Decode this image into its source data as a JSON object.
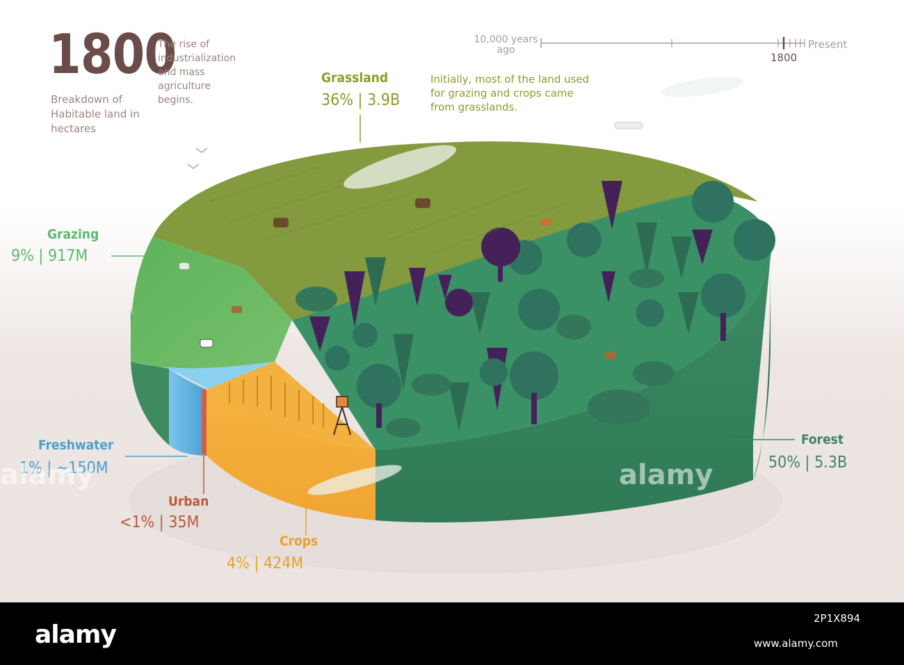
{
  "header": {
    "year": "1800",
    "subtitle": "Breakdown of Habitable land in hectares",
    "description": "The rise of industrialization and mass agriculture begins."
  },
  "timeline": {
    "start_label": "10,000 years ago",
    "end_label": "Present",
    "marker_label": "1800"
  },
  "grassland_note": "Initially, most of the land used for grazing and crops came from grasslands.",
  "chart_data": {
    "type": "pie",
    "title": "1800",
    "subtitle": "Breakdown of Habitable land in hectares",
    "slices": [
      {
        "name": "Forest",
        "percent": 50,
        "value_label": "5.3B",
        "display": "50% | 5.3B",
        "color": "#3a8a62"
      },
      {
        "name": "Grassland",
        "percent": 36,
        "value_label": "3.9B",
        "display": "36% | 3.9B",
        "color": "#839a3e"
      },
      {
        "name": "Grazing",
        "percent": 9,
        "value_label": "917M",
        "display": "9% | 917M",
        "color": "#63b55e"
      },
      {
        "name": "Freshwater",
        "percent": 1,
        "value_label": "~150M",
        "display": "1% | ~150M",
        "color": "#5aaedc"
      },
      {
        "name": "Urban",
        "percent": 1,
        "value_label": "35M",
        "display": "<1% | 35M",
        "color": "#c8634a"
      },
      {
        "name": "Crops",
        "percent": 4,
        "value_label": "424M",
        "display": "4% | 424M",
        "color": "#f3a83a"
      }
    ]
  },
  "labels": {
    "grassland": {
      "name": "Grassland",
      "value": "36%  |  3.9B"
    },
    "grazing": {
      "name": "Grazing",
      "value": "9%  |  917M"
    },
    "freshwater": {
      "name": "Freshwater",
      "value": "1%  |  ~150M"
    },
    "urban": {
      "name": "Urban",
      "value": "<1%  |  35M"
    },
    "crops": {
      "name": "Crops",
      "value": "4%  |  424M"
    },
    "forest": {
      "name": "Forest",
      "value": "50%  |  5.3B"
    }
  },
  "colors": {
    "title": "#6a4d49",
    "grassland": "#8f9a2a",
    "grazing": "#5cb870",
    "freshwater": "#4a9fd0",
    "urban": "#b85a3d",
    "crops": "#e6a22c",
    "forest": "#3f8463"
  },
  "watermark": {
    "brand": "alamy",
    "image_id": "2P1X894",
    "url": "www.alamy.com"
  }
}
